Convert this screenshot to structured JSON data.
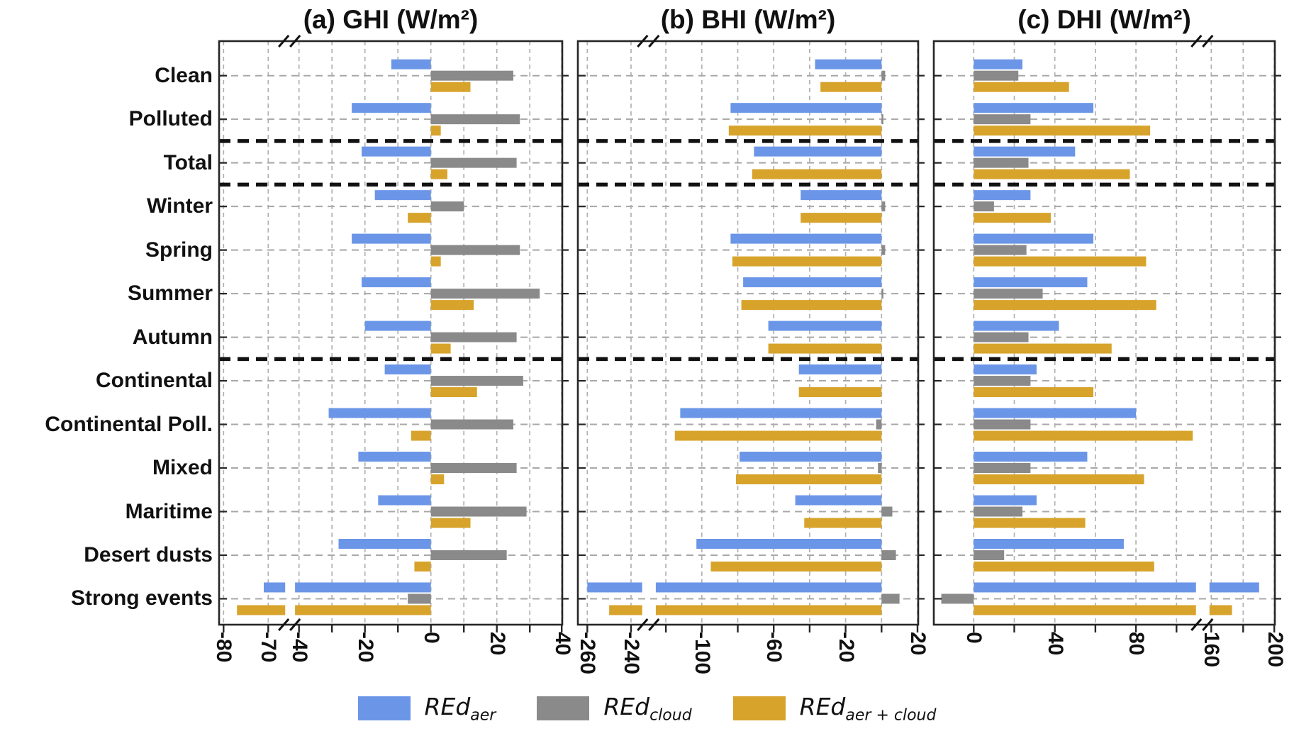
{
  "figure": {
    "categories": [
      "Clean",
      "Polluted",
      "Total",
      "Winter",
      "Spring",
      "Summer",
      "Autumn",
      "Continental",
      "Continental Poll.",
      "Mixed",
      "Maritime",
      "Desert dusts",
      "Strong events"
    ],
    "row_group_separators_after": [
      "Polluted",
      "Total",
      "Autumn"
    ],
    "colors": {
      "aer": "#6b96e8",
      "cloud": "#8a8a8a",
      "aer_cloud": "#d7a32b",
      "grid": "#b1b1b1",
      "rowgrid": "#a8a8a8",
      "separator": "#111111",
      "frame": "#262626"
    },
    "legend": [
      {
        "name": "REd_aer",
        "main": "REd",
        "sub": "aer",
        "color": "#6b96e8"
      },
      {
        "name": "REd_cloud",
        "main": "REd",
        "sub": "cloud",
        "color": "#8a8a8a"
      },
      {
        "name": "REd_aer_cloud",
        "main": "REd",
        "sub": "aer + cloud",
        "color": "#d7a32b"
      }
    ]
  },
  "chart_data": [
    {
      "type": "bar",
      "orientation": "horizontal",
      "panel": "a",
      "title": "(a) GHI (W/m²)",
      "axis_break_between": [
        -70,
        -40
      ],
      "x_ticks": [
        {
          "v": -80,
          "label": "-80"
        },
        {
          "v": -70,
          "label": "-70"
        },
        {
          "v": -40,
          "label": "-40"
        },
        {
          "v": -20,
          "label": "-20"
        },
        {
          "v": 0,
          "label": "0"
        },
        {
          "v": 20,
          "label": "20"
        },
        {
          "v": 40,
          "label": "40"
        }
      ],
      "gridline_values": [
        -80,
        -70,
        -40,
        -30,
        -20,
        -10,
        0,
        10,
        20,
        30,
        40
      ],
      "series": [
        {
          "name": "REd_aer",
          "color": "#6b96e8",
          "values": [
            -12,
            -24,
            -21,
            -17,
            -24,
            -21,
            -20,
            -14,
            -31,
            -22,
            -16,
            -28,
            -71
          ]
        },
        {
          "name": "REd_cloud",
          "color": "#8a8a8a",
          "values": [
            25,
            27,
            26,
            10,
            27,
            33,
            26,
            28,
            25,
            26,
            29,
            23,
            -7
          ]
        },
        {
          "name": "REd_aer+cloud",
          "color": "#d7a32b",
          "values": [
            12,
            3,
            5,
            -7,
            3,
            13,
            6,
            14,
            -6,
            4,
            12,
            -5,
            -77
          ]
        }
      ]
    },
    {
      "type": "bar",
      "orientation": "horizontal",
      "panel": "b",
      "title": "(b) BHI (W/m²)",
      "axis_break_between": [
        -240,
        -120
      ],
      "x_ticks": [
        {
          "v": -260,
          "label": "-260"
        },
        {
          "v": -240,
          "label": "-240"
        },
        {
          "v": -100,
          "label": "-100"
        },
        {
          "v": -60,
          "label": "-60"
        },
        {
          "v": -20,
          "label": "-20"
        },
        {
          "v": 20,
          "label": "20"
        }
      ],
      "gridline_values": [
        -260,
        -240,
        -120,
        -100,
        -80,
        -60,
        -40,
        -20,
        0,
        20
      ],
      "series": [
        {
          "name": "REd_aer",
          "color": "#6b96e8",
          "values": [
            -37,
            -84,
            -71,
            -45,
            -84,
            -77,
            -63,
            -46,
            -112,
            -79,
            -48,
            -103,
            -260
          ]
        },
        {
          "name": "REd_cloud",
          "color": "#8a8a8a",
          "values": [
            2,
            1,
            0,
            2,
            2,
            1,
            0,
            0,
            -3,
            -2,
            6,
            8,
            10
          ]
        },
        {
          "name": "REd_aer+cloud",
          "color": "#d7a32b",
          "values": [
            -34,
            -85,
            -72,
            -45,
            -83,
            -78,
            -63,
            -46,
            -115,
            -81,
            -43,
            -95,
            -250
          ]
        }
      ]
    },
    {
      "type": "bar",
      "orientation": "horizontal",
      "panel": "c",
      "title": "(c) DHI (W/m²)",
      "axis_break_between": [
        100,
        160
      ],
      "x_ticks": [
        {
          "v": 0,
          "label": "0"
        },
        {
          "v": 40,
          "label": "40"
        },
        {
          "v": 80,
          "label": "80"
        },
        {
          "v": 160,
          "label": "160"
        },
        {
          "v": 200,
          "label": "200"
        }
      ],
      "gridline_values": [
        0,
        20,
        40,
        60,
        80,
        100,
        160,
        180,
        200
      ],
      "series": [
        {
          "name": "REd_aer",
          "color": "#6b96e8",
          "values": [
            24,
            59,
            50,
            28,
            59,
            56,
            42,
            31,
            80,
            56,
            31,
            74,
            190
          ]
        },
        {
          "name": "REd_cloud",
          "color": "#8a8a8a",
          "values": [
            22,
            28,
            27,
            10,
            26,
            34,
            27,
            28,
            28,
            28,
            24,
            15,
            -16
          ]
        },
        {
          "name": "REd_aer+cloud",
          "color": "#d7a32b",
          "values": [
            47,
            87,
            77,
            38,
            85,
            90,
            68,
            59,
            108,
            84,
            55,
            89,
            173
          ]
        }
      ]
    }
  ]
}
